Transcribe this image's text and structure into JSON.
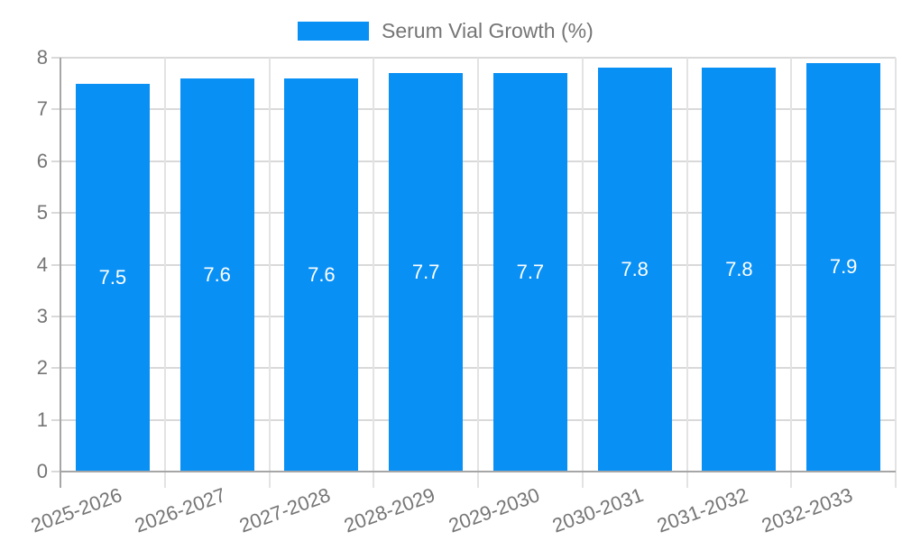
{
  "chart_data": {
    "type": "bar",
    "title": "",
    "legend": {
      "label": "Serum Vial Growth (%)",
      "position": "top"
    },
    "categories": [
      "2025-2026",
      "2026-2027",
      "2027-2028",
      "2028-2029",
      "2029-2030",
      "2030-2031",
      "2031-2032",
      "2032-2033"
    ],
    "values": [
      7.5,
      7.6,
      7.6,
      7.7,
      7.7,
      7.8,
      7.8,
      7.9
    ],
    "bar_labels": [
      "7.5",
      "7.6",
      "7.6",
      "7.7",
      "7.7",
      "7.8",
      "7.8",
      "7.9"
    ],
    "xlabel": "",
    "ylabel": "",
    "ylim": [
      0,
      8
    ],
    "yticks": [
      0,
      1,
      2,
      3,
      4,
      5,
      6,
      7,
      8
    ],
    "grid": true,
    "legend_position": "top",
    "colors": {
      "bar": "#0990f5",
      "bar_label": "#ffffff",
      "axis_text": "#757575",
      "gridline": "#d9d9d9",
      "band_separator": "#e3e3e3",
      "axis_line": "#a6a6a6",
      "background": "#ffffff"
    }
  }
}
